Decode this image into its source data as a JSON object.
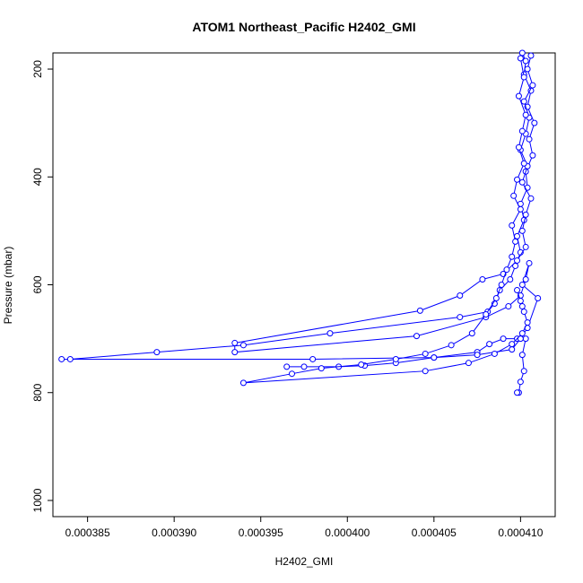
{
  "chart_data": {
    "type": "line",
    "title": "ATOM1 Northeast_Pacific H2402_GMI",
    "xlabel": "H2402_GMI",
    "ylabel": "Pressure (mbar)",
    "xlim": [
      0.000383,
      0.000412
    ],
    "ylim": [
      1030,
      170
    ],
    "y_reversed": true,
    "grid": false,
    "x_ticks": [
      "0.000385",
      "0.000390",
      "0.000395",
      "0.000400",
      "0.000405",
      "0.000410"
    ],
    "x_tick_values": [
      0.000385,
      0.00039,
      0.000395,
      0.0004,
      0.000405,
      0.00041
    ],
    "y_ticks": [
      "200",
      "400",
      "600",
      "800",
      "1000"
    ],
    "y_tick_values": [
      200,
      400,
      600,
      800,
      1000
    ],
    "series_color": "#0000ff",
    "series": [
      {
        "values": [
          [
            0.0004101,
            170
          ],
          [
            0.0004103,
            185
          ],
          [
            0.0004102,
            210
          ],
          [
            0.0004106,
            240
          ],
          [
            0.0004104,
            270
          ],
          [
            0.0004108,
            300
          ],
          [
            0.0004105,
            330
          ],
          [
            0.0004107,
            360
          ],
          [
            0.0004103,
            390
          ],
          [
            0.0004104,
            420
          ],
          [
            0.00041,
            450
          ],
          [
            0.0004102,
            480
          ],
          [
            0.0004098,
            510
          ],
          [
            0.00041,
            540
          ],
          [
            0.0004097,
            565
          ],
          [
            0.0004094,
            590
          ],
          [
            0.0004088,
            610
          ],
          [
            0.0004085,
            635
          ],
          [
            0.0004081,
            650
          ],
          [
            0.0004065,
            660
          ],
          [
            0.000399,
            690
          ],
          [
            0.000394,
            712
          ],
          [
            0.000389,
            725
          ],
          [
            0.000384,
            738
          ],
          [
            0.0003835,
            738
          ],
          [
            0.000398,
            738
          ],
          [
            0.000405,
            735
          ],
          [
            0.0004075,
            725
          ],
          [
            0.0004082,
            710
          ],
          [
            0.000409,
            700
          ],
          [
            0.0004098,
            700
          ],
          [
            0.0004103,
            700
          ],
          [
            0.0004101,
            730
          ],
          [
            0.0004102,
            760
          ],
          [
            0.00041,
            780
          ],
          [
            0.0004099,
            800
          ],
          [
            0.0004098,
            800
          ]
        ]
      },
      {
        "values": [
          [
            0.0004106,
            175
          ],
          [
            0.0004104,
            200
          ],
          [
            0.0004107,
            230
          ],
          [
            0.0004102,
            260
          ],
          [
            0.0004105,
            290
          ],
          [
            0.0004103,
            320
          ],
          [
            0.00041,
            350
          ],
          [
            0.0004104,
            380
          ],
          [
            0.0004101,
            410
          ],
          [
            0.0004106,
            440
          ],
          [
            0.0004103,
            470
          ],
          [
            0.0004101,
            500
          ],
          [
            0.0004103,
            530
          ],
          [
            0.0004098,
            555
          ],
          [
            0.000409,
            580
          ],
          [
            0.0004078,
            590
          ],
          [
            0.0004065,
            620
          ],
          [
            0.0004042,
            648
          ],
          [
            0.0003935,
            708
          ],
          [
            0.0003935,
            725
          ],
          [
            0.000404,
            695
          ],
          [
            0.000408,
            660
          ],
          [
            0.0004093,
            640
          ],
          [
            0.00041,
            620
          ],
          [
            0.0004103,
            590
          ],
          [
            0.0004105,
            560
          ],
          [
            0.0004101,
            600
          ],
          [
            0.000411,
            625
          ],
          [
            0.0004104,
            680
          ],
          [
            0.00041,
            700
          ],
          [
            0.0004095,
            720
          ],
          [
            0.0004075,
            730
          ],
          [
            0.000405,
            735
          ],
          [
            0.0004028,
            745
          ],
          [
            0.000401,
            750
          ],
          [
            0.0003995,
            752
          ],
          [
            0.0003975,
            752
          ],
          [
            0.0003965,
            752
          ]
        ]
      },
      {
        "values": [
          [
            0.00041,
            180
          ],
          [
            0.0004102,
            215
          ],
          [
            0.0004099,
            250
          ],
          [
            0.0004103,
            285
          ],
          [
            0.0004101,
            315
          ],
          [
            0.0004099,
            345
          ],
          [
            0.0004102,
            375
          ],
          [
            0.0004098,
            405
          ],
          [
            0.0004096,
            435
          ],
          [
            0.00041,
            460
          ],
          [
            0.0004095,
            490
          ],
          [
            0.0004097,
            520
          ],
          [
            0.0004095,
            548
          ],
          [
            0.0004092,
            572
          ],
          [
            0.0004089,
            600
          ],
          [
            0.0004086,
            625
          ],
          [
            0.000408,
            655
          ],
          [
            0.0004072,
            690
          ],
          [
            0.000406,
            712
          ],
          [
            0.0004045,
            728
          ],
          [
            0.0004028,
            738
          ],
          [
            0.0004008,
            748
          ],
          [
            0.0003985,
            755
          ],
          [
            0.0003968,
            765
          ],
          [
            0.000394,
            782
          ],
          [
            0.0004045,
            760
          ],
          [
            0.000407,
            745
          ],
          [
            0.0004085,
            728
          ],
          [
            0.0004095,
            710
          ],
          [
            0.0004101,
            690
          ],
          [
            0.0004104,
            670
          ],
          [
            0.0004102,
            650
          ],
          [
            0.00041,
            630
          ],
          [
            0.0004098,
            610
          ],
          [
            0.0004101,
            640
          ]
        ]
      }
    ]
  }
}
